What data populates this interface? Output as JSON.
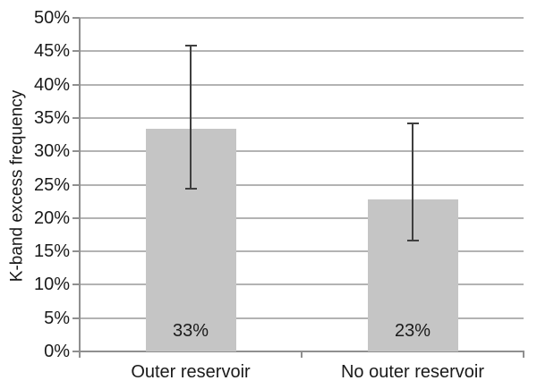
{
  "chart_data": {
    "type": "bar",
    "title": "",
    "xlabel": "",
    "ylabel": "K-band excess frequency",
    "categories": [
      "Outer reservoir",
      "No outer reservoir"
    ],
    "values": [
      33.4,
      22.8
    ],
    "bar_labels": [
      "33%",
      "23%"
    ],
    "error_bars": [
      {
        "low": 24.4,
        "high": 45.8
      },
      {
        "low": 16.6,
        "high": 34.2
      }
    ],
    "ylim": [
      0,
      50
    ],
    "ytick_step": 5,
    "ytick_values": [
      0,
      5,
      10,
      15,
      20,
      25,
      30,
      35,
      40,
      45,
      50
    ],
    "ytick_labels": [
      "0%",
      "5%",
      "10%",
      "15%",
      "20%",
      "25%",
      "30%",
      "35%",
      "40%",
      "45%",
      "50%"
    ],
    "grid": true,
    "legend": "none",
    "colors": {
      "bar_fill": "#c5c5c5",
      "error_bar": "#3f3f3f",
      "gridline": "#b3b3b3",
      "axis": "#8f8f8f",
      "text": "#1a1a1a",
      "background": "#ffffff"
    }
  }
}
